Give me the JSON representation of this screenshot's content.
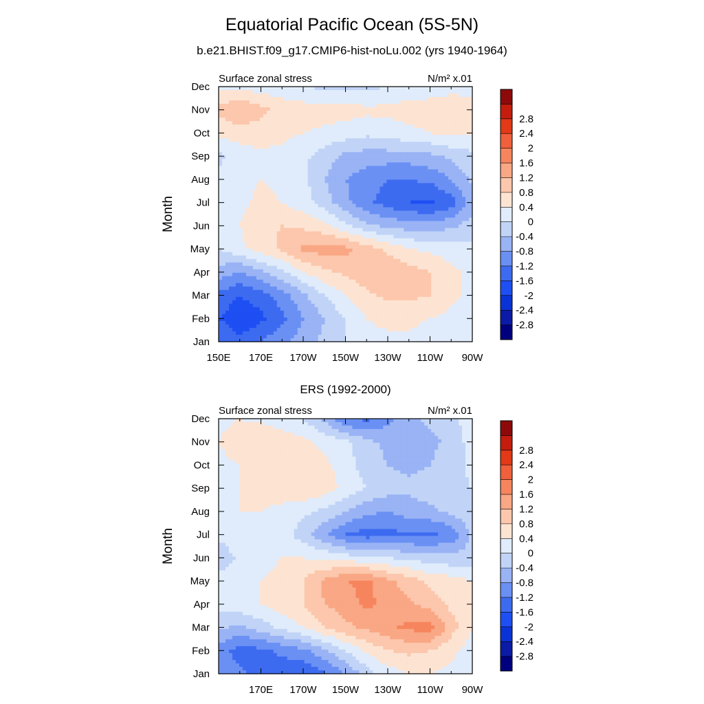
{
  "header": {
    "title": "Equatorial Pacific Ocean (5S-5N)",
    "subtitle": "b.e21.BHIST.f09_g17.CMIP6-hist-noLu.002 (yrs 1940-1964)"
  },
  "colorbar": {
    "levels": [
      "-2.8",
      "-2.4",
      "-2",
      "-1.6",
      "-1.2",
      "-0.8",
      "-0.4",
      "0",
      "0.4",
      "0.8",
      "1.2",
      "1.6",
      "2",
      "2.4",
      "2.8"
    ],
    "colors": [
      "#00007f",
      "#0b1ba6",
      "#0a33d6",
      "#1e4ff3",
      "#3d6bf0",
      "#6a90f4",
      "#99b3f5",
      "#c1d4f7",
      "#e0ecfb",
      "#fde3d2",
      "#fcc7ac",
      "#f9a784",
      "#f6855e",
      "#f0603a",
      "#e23916",
      "#c41d0d",
      "#8e0a0a"
    ]
  },
  "chart_data": [
    {
      "type": "heatmap",
      "title": "",
      "left_label": "Surface zonal stress",
      "right_label": "N/m² x.01",
      "ylabel": "Month",
      "xlabel": "",
      "x_ticks": [
        "150E",
        "170E",
        "170W",
        "150W",
        "130W",
        "110W",
        "90W"
      ],
      "x_range": [
        "150E",
        "90W"
      ],
      "y_ticks": [
        "Jan",
        "Feb",
        "Mar",
        "Apr",
        "May",
        "Jun",
        "Jul",
        "Aug",
        "Sep",
        "Oct",
        "Nov",
        "Dec"
      ],
      "units": "N/m² x.01",
      "longitudes": [
        "150E",
        "160E",
        "170E",
        "180",
        "170W",
        "160W",
        "150W",
        "140W",
        "130W",
        "120W",
        "110W",
        "100W",
        "90W"
      ],
      "values": [
        [
          -1.2,
          -1.5,
          -1.2,
          -0.9,
          -0.6,
          -0.3,
          0.0,
          0.3,
          0.3,
          0.3,
          0.2,
          0.2,
          0.1
        ],
        [
          -1.6,
          -1.9,
          -1.7,
          -1.3,
          -0.8,
          -0.4,
          0.0,
          0.4,
          0.5,
          0.5,
          0.4,
          0.3,
          0.2
        ],
        [
          -1.3,
          -1.6,
          -1.4,
          -1.0,
          -0.5,
          0.0,
          0.4,
          0.7,
          0.9,
          0.9,
          0.8,
          0.5,
          0.3
        ],
        [
          -0.6,
          -0.8,
          -0.5,
          -0.1,
          0.4,
          0.7,
          0.9,
          1.1,
          1.2,
          1.0,
          0.8,
          0.5,
          0.3
        ],
        [
          0.0,
          0.3,
          0.6,
          0.9,
          1.3,
          1.4,
          1.3,
          1.0,
          0.7,
          0.4,
          0.3,
          0.2,
          0.1
        ],
        [
          0.2,
          0.4,
          0.7,
          0.8,
          0.7,
          0.5,
          0.1,
          -0.3,
          -0.5,
          -0.6,
          -0.6,
          -0.5,
          -0.2
        ],
        [
          0.2,
          0.3,
          0.5,
          0.4,
          0.2,
          -0.2,
          -0.7,
          -1.1,
          -1.4,
          -1.6,
          -1.7,
          -1.4,
          -0.6
        ],
        [
          0.1,
          0.3,
          0.4,
          0.3,
          0.1,
          -0.4,
          -0.8,
          -1.0,
          -1.2,
          -1.2,
          -1.1,
          -0.8,
          -0.3
        ],
        [
          -0.1,
          0.2,
          0.3,
          0.3,
          0.1,
          -0.2,
          -0.5,
          -0.6,
          -0.6,
          -0.6,
          -0.5,
          -0.3,
          -0.1
        ],
        [
          0.5,
          0.6,
          0.6,
          0.5,
          0.4,
          0.3,
          0.2,
          0.1,
          0.2,
          0.3,
          0.4,
          0.5,
          0.4
        ],
        [
          0.9,
          1.2,
          0.9,
          0.7,
          0.6,
          0.6,
          0.6,
          0.5,
          0.5,
          0.6,
          0.6,
          0.6,
          0.5
        ],
        [
          0.3,
          0.3,
          0.2,
          0.1,
          0.0,
          -0.1,
          -0.1,
          -0.1,
          0.0,
          0.1,
          0.2,
          0.3,
          0.3
        ]
      ]
    },
    {
      "type": "heatmap",
      "title": "ERS (1992-2000)",
      "left_label": "Surface zonal stress",
      "right_label": "N/m² x.01",
      "ylabel": "Month",
      "xlabel": "",
      "x_ticks": [
        "170E",
        "170W",
        "150W",
        "130W",
        "110W",
        "90W"
      ],
      "y_ticks": [
        "Jan",
        "Feb",
        "Mar",
        "Apr",
        "May",
        "Jun",
        "Jul",
        "Aug",
        "Sep",
        "Oct",
        "Nov",
        "Dec"
      ],
      "units": "N/m² x.01",
      "longitudes": [
        "150E",
        "160E",
        "170E",
        "180",
        "170W",
        "160W",
        "150W",
        "140W",
        "130W",
        "120W",
        "110W",
        "100W",
        "90W"
      ],
      "values": [
        [
          -0.8,
          -1.1,
          -1.4,
          -1.5,
          -1.6,
          -1.3,
          -0.8,
          -0.2,
          0.2,
          0.4,
          0.4,
          0.3,
          0.1
        ],
        [
          -1.0,
          -1.4,
          -1.3,
          -1.1,
          -0.9,
          -0.5,
          0.0,
          0.5,
          0.8,
          0.9,
          0.8,
          0.5,
          0.2
        ],
        [
          -0.3,
          -0.5,
          -0.2,
          0.1,
          0.4,
          0.8,
          1.1,
          1.3,
          1.5,
          1.7,
          1.8,
          1.0,
          0.4
        ],
        [
          0.1,
          0.3,
          0.4,
          0.6,
          0.8,
          1.2,
          1.4,
          1.7,
          1.5,
          1.3,
          1.0,
          0.7,
          0.4
        ],
        [
          0.2,
          0.3,
          0.4,
          0.5,
          0.8,
          1.3,
          1.6,
          1.7,
          1.3,
          1.0,
          0.7,
          0.6,
          0.4
        ],
        [
          -0.3,
          0.1,
          0.3,
          0.4,
          0.4,
          0.3,
          0.2,
          0.1,
          0.0,
          -0.1,
          -0.2,
          -0.3,
          -0.2
        ],
        [
          0.1,
          0.3,
          0.3,
          0.2,
          -0.2,
          -0.7,
          -1.2,
          -1.4,
          -1.3,
          -1.3,
          -1.3,
          -1.1,
          -0.3
        ],
        [
          0.2,
          0.4,
          0.4,
          0.3,
          0.1,
          -0.1,
          -0.4,
          -0.7,
          -0.8,
          -0.6,
          -0.5,
          -0.3,
          -0.1
        ],
        [
          0.3,
          0.4,
          0.5,
          0.6,
          0.8,
          0.6,
          0.3,
          0.0,
          -0.2,
          -0.3,
          -0.2,
          -0.1,
          0.0
        ],
        [
          0.3,
          0.4,
          0.5,
          0.5,
          0.7,
          0.5,
          0.2,
          -0.2,
          -0.4,
          -0.5,
          -0.4,
          -0.2,
          0.1
        ],
        [
          0.4,
          0.6,
          0.8,
          0.6,
          0.5,
          0.3,
          0.1,
          -0.3,
          -0.5,
          -0.6,
          -0.5,
          -0.3,
          0.2
        ],
        [
          0.3,
          0.4,
          0.3,
          0.2,
          0.0,
          -0.5,
          -1.2,
          -1.3,
          -0.9,
          -0.5,
          -0.3,
          -0.1,
          0.2
        ]
      ]
    }
  ]
}
